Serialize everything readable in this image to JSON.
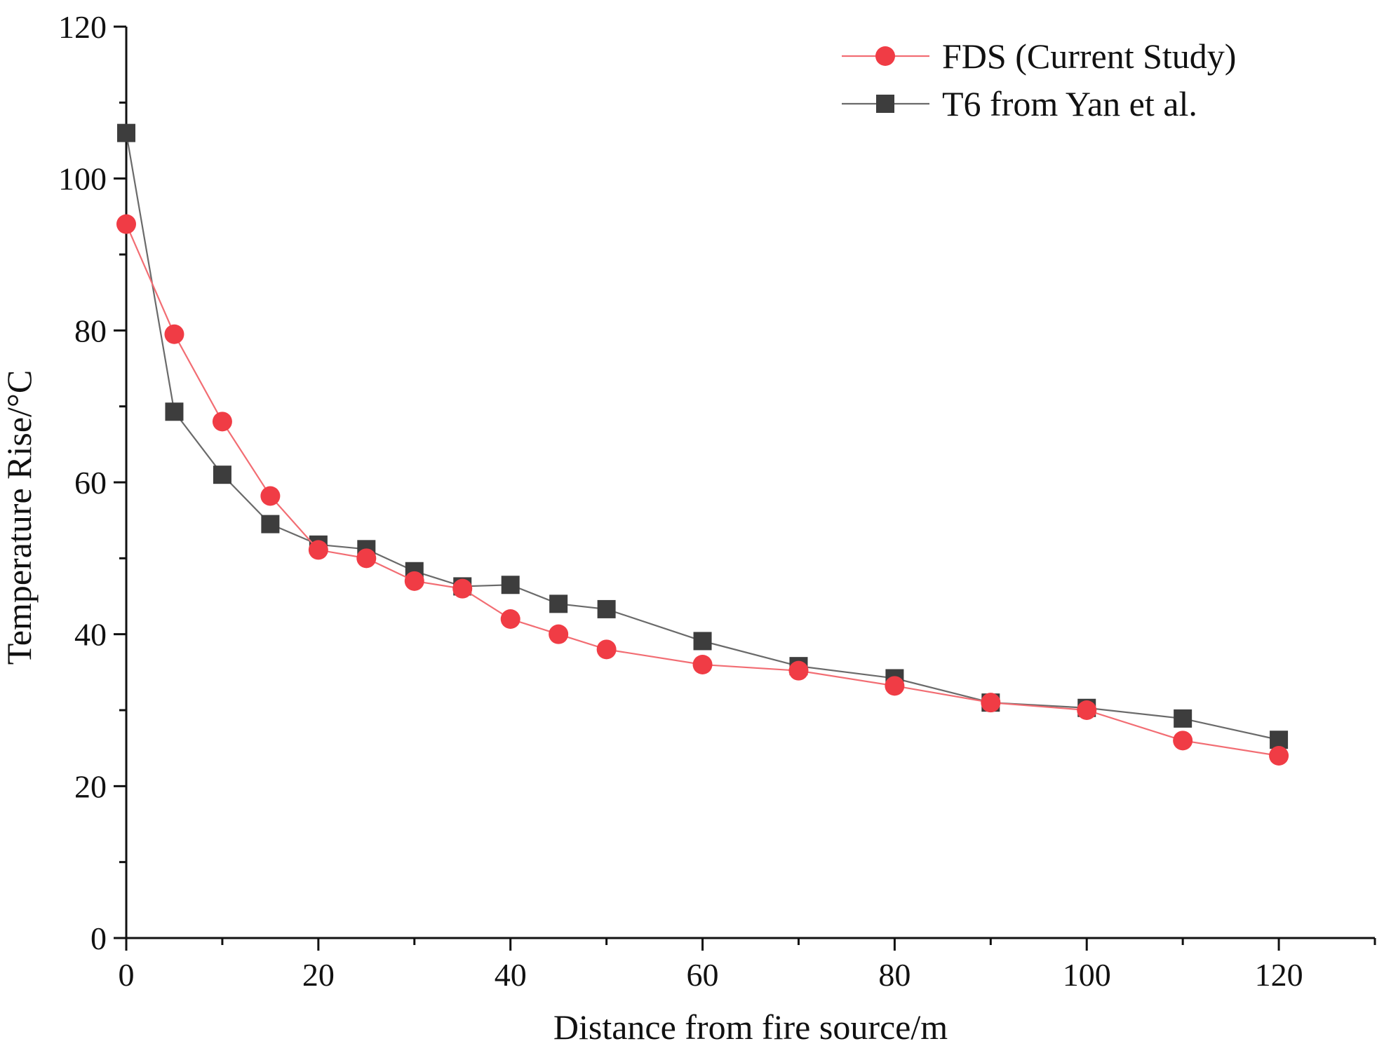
{
  "chart_data": {
    "type": "line",
    "title": "",
    "xlabel": "Distance from fire source/m",
    "ylabel": "Temperature Rise/°C",
    "xlim": [
      0,
      130
    ],
    "ylim": [
      0,
      120
    ],
    "x_ticks": [
      0,
      20,
      40,
      60,
      80,
      100,
      120
    ],
    "y_ticks": [
      0,
      20,
      40,
      60,
      80,
      100,
      120
    ],
    "x_tick_labels": [
      "0",
      "20",
      "40",
      "60",
      "80",
      "100",
      "120"
    ],
    "y_tick_labels": [
      "0",
      "20",
      "40",
      "60",
      "80",
      "100",
      "120"
    ],
    "grid": false,
    "legend_position": "top-right",
    "series": [
      {
        "name": "FDS (Current Study)",
        "marker": "circle",
        "color": "#f03c45",
        "line_color": "#f26d73",
        "x": [
          0,
          5,
          10,
          15,
          20,
          25,
          30,
          35,
          40,
          45,
          50,
          60,
          70,
          80,
          90,
          100,
          110,
          120
        ],
        "values": [
          94,
          79.5,
          68,
          58.2,
          51.1,
          50,
          47,
          46,
          42,
          40,
          38,
          36,
          35.2,
          33.2,
          31,
          30,
          26,
          24
        ]
      },
      {
        "name": "T6 from Yan et al.",
        "marker": "square",
        "color": "#3d3d3d",
        "line_color": "#6a6a6a",
        "x": [
          0,
          5,
          10,
          15,
          20,
          25,
          30,
          35,
          40,
          45,
          50,
          60,
          70,
          80,
          90,
          100,
          110,
          120
        ],
        "values": [
          106,
          69.3,
          61,
          54.5,
          51.8,
          51.2,
          48.3,
          46.3,
          46.5,
          44,
          43.3,
          39.1,
          35.8,
          34.2,
          31,
          30.3,
          28.9,
          26.1
        ]
      }
    ]
  }
}
